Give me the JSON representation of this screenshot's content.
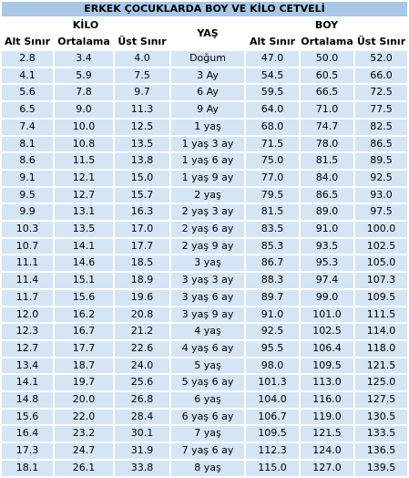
{
  "title": "ERKEK ÇOCUKLARDA BOY VE KİLO CETVELİ",
  "groups": {
    "kilo": "KİLO",
    "yas": "YAŞ",
    "boy": "BOY"
  },
  "subheaders": {
    "kilo_alt": "Alt Sınır",
    "kilo_ort": "Ortalama",
    "kilo_ust": "Üst Sınır",
    "boy_alt": "Alt Sınır",
    "boy_ort": "Ortalama",
    "boy_ust": "Üst Sınır"
  },
  "rows": [
    [
      "2.8",
      "3.4",
      "4.0",
      "Doğum",
      "47.0",
      "50.0",
      "52.0"
    ],
    [
      "4.1",
      "5.9",
      "7.5",
      "3 Ay",
      "54.5",
      "60.5",
      "66.0"
    ],
    [
      "5.6",
      "7.8",
      "9.7",
      "6 Ay",
      "59.5",
      "66.5",
      "72.5"
    ],
    [
      "6.5",
      "9.0",
      "11.3",
      "9 Ay",
      "64.0",
      "71.0",
      "77.5"
    ],
    [
      "7.4",
      "10.0",
      "12.5",
      "1 yaş",
      "68.0",
      "74.7",
      "82.5"
    ],
    [
      "8.1",
      "10.8",
      "13.5",
      "1 yaş 3 ay",
      "71.5",
      "78.0",
      "86.5"
    ],
    [
      "8.6",
      "11.5",
      "13.8",
      "1 yaş 6 ay",
      "75.0",
      "81.5",
      "89.5"
    ],
    [
      "9.1",
      "12.1",
      "15.0",
      "1 yaş 9 ay",
      "77.0",
      "84.0",
      "92.5"
    ],
    [
      "9.5",
      "12.7",
      "15.7",
      "2 yaş",
      "79.5",
      "86.5",
      "93.0"
    ],
    [
      "9.9",
      "13.1",
      "16.3",
      "2 yaş 3 ay",
      "81.5",
      "89.0",
      "97.5"
    ],
    [
      "10.3",
      "13.5",
      "17.0",
      "2 yaş 6 ay",
      "83.5",
      "91.0",
      "100.0"
    ],
    [
      "10.7",
      "14.1",
      "17.7",
      "2 yaş 9 ay",
      "85.3",
      "93.5",
      "102.5"
    ],
    [
      "11.1",
      "14.6",
      "18.5",
      "3 yaş",
      "86.7",
      "95.3",
      "105.0"
    ],
    [
      "11.4",
      "15.1",
      "18.9",
      "3 yaş 3 ay",
      "88.3",
      "97.4",
      "107.3"
    ],
    [
      "11.7",
      "15.6",
      "19.6",
      "3 yaş 6 ay",
      "89.7",
      "99.0",
      "109.5"
    ],
    [
      "12.0",
      "16.2",
      "20.8",
      "3 yaş 9 ay",
      "91.0",
      "101.0",
      "111.5"
    ],
    [
      "12.3",
      "16.7",
      "21.2",
      "4 yaş",
      "92.5",
      "102.5",
      "114.0"
    ],
    [
      "12.7",
      "17.7",
      "22.6",
      "4 yaş 6 ay",
      "95.5",
      "106.4",
      "118.0"
    ],
    [
      "13.4",
      "18.7",
      "24.0",
      "5 yaş",
      "98.0",
      "109.5",
      "121.5"
    ],
    [
      "14.1",
      "19.7",
      "25.6",
      "5 yaş 6 ay",
      "101.3",
      "113.0",
      "125.0"
    ],
    [
      "14.8",
      "20.0",
      "26.8",
      "6 yaş",
      "104.0",
      "116.0",
      "127.5"
    ],
    [
      "15.6",
      "22.0",
      "28.4",
      "6 yaş 6 ay",
      "106.7",
      "119.0",
      "130.5"
    ],
    [
      "16.4",
      "23.2",
      "30.1",
      "7 yaş",
      "109.5",
      "121.5",
      "133.5"
    ],
    [
      "17.3",
      "24.7",
      "31.9",
      "7 yaş 6 ay",
      "112.3",
      "124.0",
      "136.5"
    ],
    [
      "18.1",
      "26.1",
      "33.8",
      "8 yaş",
      "115.0",
      "127.0",
      "139.5"
    ]
  ],
  "colors": {
    "title_bg": "#a9c8e8",
    "cell_bg": "#d5e5f5",
    "header_bg": "#ffffff"
  }
}
